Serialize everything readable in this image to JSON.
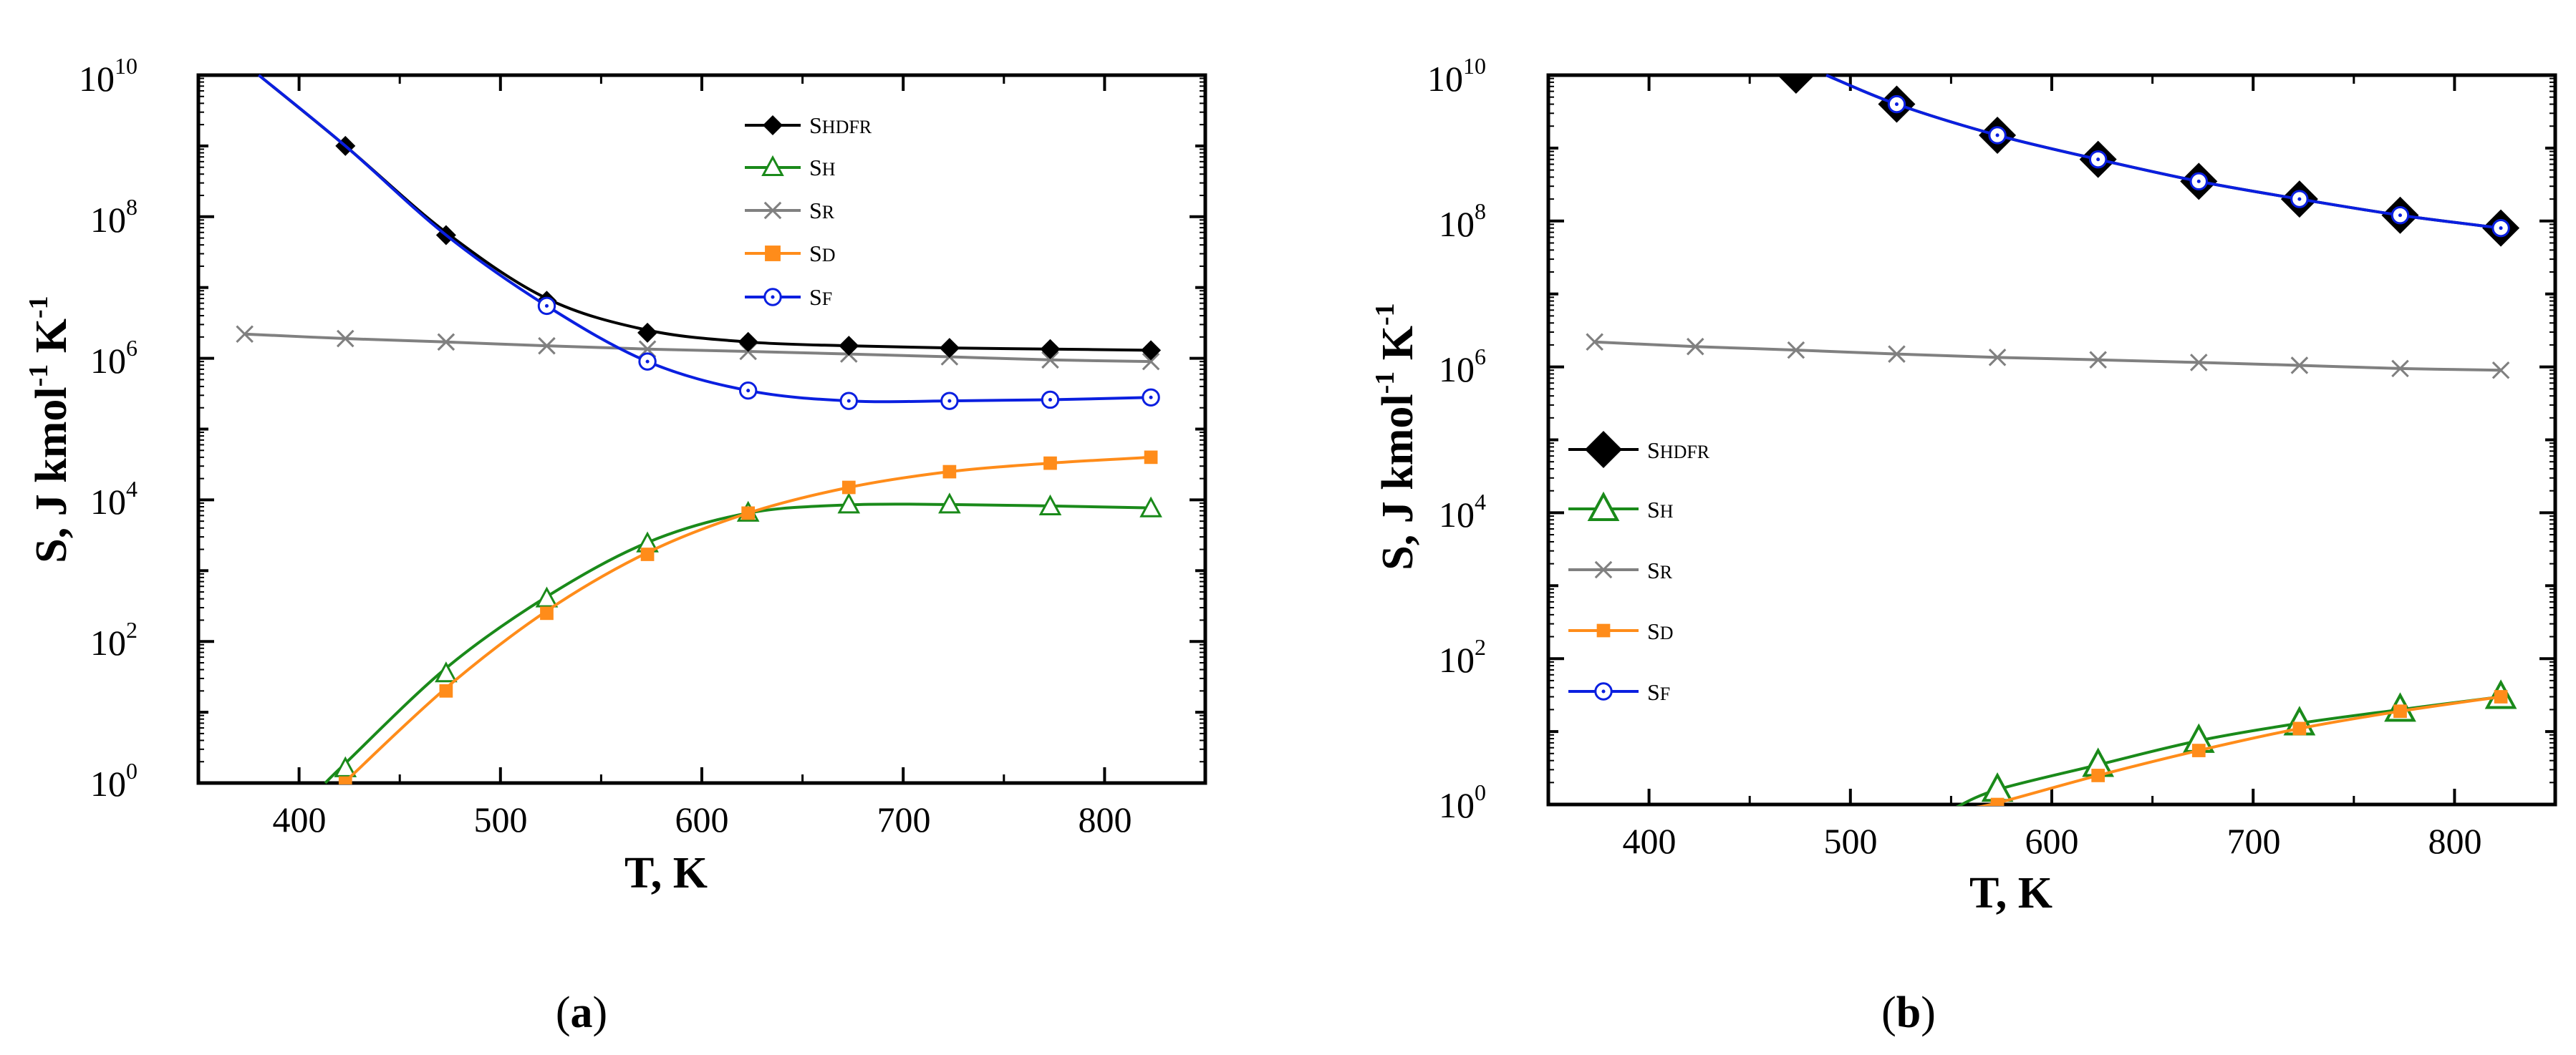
{
  "colors": {
    "shdfr": "#000000",
    "sh": "#1a8a1a",
    "sr": "#808080",
    "sd": "#ff8c1a",
    "sf": "#0a1fe0"
  },
  "chart_data": [
    {
      "type": "line",
      "caption_pre": "(",
      "caption_letter": "a",
      "caption_post": ")",
      "xlabel": "T, K",
      "ylabel_main": "S, J kmol",
      "ylabel_exp1": "-1",
      "ylabel_mid": " K",
      "ylabel_exp2": "-1",
      "yscale": "log",
      "xlim": [
        350,
        850
      ],
      "ylim": [
        1,
        10000000000
      ],
      "xticks": [
        400,
        500,
        600,
        700,
        800
      ],
      "yticks": [
        {
          "base": "10",
          "exp": "0"
        },
        {
          "base": "10",
          "exp": "2"
        },
        {
          "base": "10",
          "exp": "4"
        },
        {
          "base": "10",
          "exp": "6"
        },
        {
          "base": "10",
          "exp": "8"
        },
        {
          "base": "10",
          "exp": "10"
        }
      ],
      "legend_position": "top-right",
      "series": [
        {
          "key": "shdfr",
          "name": "S",
          "sub": "HDFR",
          "marker": "diamond",
          "points": [
            [
              423,
              1000000000
            ],
            [
              473,
              55000000
            ],
            [
              523,
              6500000
            ],
            [
              573,
              2300000
            ],
            [
              623,
              1700000
            ],
            [
              673,
              1500000
            ],
            [
              723,
              1400000
            ],
            [
              773,
              1350000
            ],
            [
              823,
              1300000
            ]
          ],
          "curve": [
            [
              380,
              10000000000
            ],
            [
              423,
              1000000000
            ],
            [
              473,
              60000000
            ],
            [
              523,
              7000000
            ],
            [
              573,
              2500000
            ],
            [
              623,
              1700000
            ],
            [
              673,
              1500000
            ],
            [
              723,
              1400000
            ],
            [
              773,
              1350000
            ],
            [
              823,
              1300000
            ]
          ]
        },
        {
          "key": "sh",
          "name": "S",
          "sub": "H",
          "marker": "triangle",
          "points": [
            [
              423,
              1.6
            ],
            [
              473,
              35
            ],
            [
              523,
              400
            ],
            [
              573,
              2400
            ],
            [
              623,
              6500
            ],
            [
              673,
              8500
            ],
            [
              723,
              8500
            ],
            [
              773,
              8000
            ],
            [
              823,
              7500
            ]
          ],
          "curve": [
            [
              413,
              1
            ],
            [
              423,
              1.9
            ],
            [
              473,
              42
            ],
            [
              523,
              430
            ],
            [
              573,
              2500
            ],
            [
              623,
              6500
            ],
            [
              673,
              8500
            ],
            [
              723,
              8600
            ],
            [
              773,
              8200
            ],
            [
              823,
              7700
            ]
          ]
        },
        {
          "key": "sr",
          "name": "S",
          "sub": "R",
          "marker": "x",
          "points": [
            [
              373,
              2200000
            ],
            [
              423,
              1900000
            ],
            [
              473,
              1700000
            ],
            [
              523,
              1500000
            ],
            [
              573,
              1350000
            ],
            [
              623,
              1250000
            ],
            [
              673,
              1150000
            ],
            [
              723,
              1050000
            ],
            [
              773,
              950000
            ],
            [
              823,
              900000
            ]
          ],
          "curve": [
            [
              373,
              2200000
            ],
            [
              423,
              1900000
            ],
            [
              473,
              1700000
            ],
            [
              523,
              1500000
            ],
            [
              573,
              1350000
            ],
            [
              623,
              1250000
            ],
            [
              673,
              1150000
            ],
            [
              723,
              1050000
            ],
            [
              773,
              950000
            ],
            [
              823,
              900000
            ]
          ]
        },
        {
          "key": "sd",
          "name": "S",
          "sub": "D",
          "marker": "square",
          "points": [
            [
              423,
              1
            ],
            [
              473,
              20
            ],
            [
              523,
              250
            ],
            [
              573,
              1700
            ],
            [
              623,
              6500
            ],
            [
              673,
              15000
            ],
            [
              723,
              25000
            ],
            [
              773,
              33000
            ],
            [
              823,
              40000
            ]
          ],
          "curve": [
            [
              420,
              0.9
            ],
            [
              423,
              1.05
            ],
            [
              473,
              22
            ],
            [
              523,
              270
            ],
            [
              573,
              1800
            ],
            [
              623,
              6500
            ],
            [
              673,
              15000
            ],
            [
              723,
              25000
            ],
            [
              773,
              33000
            ],
            [
              823,
              40000
            ]
          ]
        },
        {
          "key": "sf",
          "name": "S",
          "sub": "F",
          "marker": "circle",
          "points": [
            [
              523,
              5500000
            ],
            [
              573,
              900000
            ],
            [
              623,
              350000
            ],
            [
              673,
              250000
            ],
            [
              723,
              250000
            ],
            [
              773,
              260000
            ],
            [
              823,
              280000
            ]
          ],
          "curve": [
            [
              380,
              10000000000
            ],
            [
              423,
              1000000000
            ],
            [
              473,
              55000000
            ],
            [
              523,
              5500000
            ],
            [
              573,
              900000
            ],
            [
              623,
              350000
            ],
            [
              673,
              250000
            ],
            [
              723,
              250000
            ],
            [
              773,
              260000
            ],
            [
              823,
              280000
            ]
          ]
        }
      ]
    },
    {
      "type": "line",
      "caption_pre": "(",
      "caption_letter": "b",
      "caption_post": ")",
      "xlabel": "T, K",
      "ylabel_main": "S, J kmol",
      "ylabel_exp1": "-1",
      "ylabel_mid": " K",
      "ylabel_exp2": "-1",
      "yscale": "log",
      "xlim": [
        350,
        850
      ],
      "ylim": [
        1,
        10000000000
      ],
      "xticks": [
        400,
        500,
        600,
        700,
        800
      ],
      "yticks": [
        {
          "base": "10",
          "exp": "0"
        },
        {
          "base": "10",
          "exp": "2"
        },
        {
          "base": "10",
          "exp": "4"
        },
        {
          "base": "10",
          "exp": "6"
        },
        {
          "base": "10",
          "exp": "8"
        },
        {
          "base": "10",
          "exp": "10"
        }
      ],
      "legend_position": "left",
      "series": [
        {
          "key": "shdfr",
          "name": "S",
          "sub": "HDFR",
          "marker": "diamond",
          "points": [
            [
              473,
              10000000000
            ],
            [
              523,
              4000000000
            ],
            [
              573,
              1500000000
            ],
            [
              623,
              700000000
            ],
            [
              673,
              350000000
            ],
            [
              723,
              200000000
            ],
            [
              773,
              120000000
            ],
            [
              823,
              80000000
            ]
          ],
          "curve": [
            [
              488,
              10000000000
            ],
            [
              523,
              4000000000
            ],
            [
              573,
              1500000000
            ],
            [
              623,
              700000000
            ],
            [
              673,
              350000000
            ],
            [
              723,
              200000000
            ],
            [
              773,
              120000000
            ],
            [
              823,
              80000000
            ]
          ]
        },
        {
          "key": "sh",
          "name": "S",
          "sub": "H",
          "marker": "triangle",
          "points": [
            [
              573,
              1.6
            ],
            [
              623,
              3.5
            ],
            [
              673,
              7.5
            ],
            [
              723,
              13
            ],
            [
              773,
              20
            ],
            [
              823,
              30
            ]
          ],
          "curve": [
            [
              552,
              0.9
            ],
            [
              573,
              1.6
            ],
            [
              623,
              3.5
            ],
            [
              673,
              7.5
            ],
            [
              723,
              13
            ],
            [
              773,
              20
            ],
            [
              823,
              30
            ]
          ]
        },
        {
          "key": "sr",
          "name": "S",
          "sub": "R",
          "marker": "x",
          "points": [
            [
              373,
              2200000
            ],
            [
              423,
              1900000
            ],
            [
              473,
              1700000
            ],
            [
              523,
              1500000
            ],
            [
              573,
              1350000
            ],
            [
              623,
              1250000
            ],
            [
              673,
              1150000
            ],
            [
              723,
              1050000
            ],
            [
              773,
              950000
            ],
            [
              823,
              900000
            ]
          ],
          "curve": [
            [
              373,
              2200000
            ],
            [
              423,
              1900000
            ],
            [
              473,
              1700000
            ],
            [
              523,
              1500000
            ],
            [
              573,
              1350000
            ],
            [
              623,
              1250000
            ],
            [
              673,
              1150000
            ],
            [
              723,
              1050000
            ],
            [
              773,
              950000
            ],
            [
              823,
              900000
            ]
          ]
        },
        {
          "key": "sd",
          "name": "S",
          "sub": "D",
          "marker": "square",
          "points": [
            [
              573,
              1
            ],
            [
              623,
              2.5
            ],
            [
              673,
              5.5
            ],
            [
              723,
              11
            ],
            [
              773,
              19
            ],
            [
              823,
              30
            ]
          ],
          "curve": [
            [
              560,
              0.9
            ],
            [
              573,
              1.05
            ],
            [
              623,
              2.5
            ],
            [
              673,
              5.5
            ],
            [
              723,
              11
            ],
            [
              773,
              19
            ],
            [
              823,
              30
            ]
          ]
        },
        {
          "key": "sf",
          "name": "S",
          "sub": "F",
          "marker": "circle",
          "points": [
            [
              523,
              4000000000
            ],
            [
              573,
              1500000000
            ],
            [
              623,
              700000000
            ],
            [
              673,
              350000000
            ],
            [
              723,
              200000000
            ],
            [
              773,
              120000000
            ],
            [
              823,
              80000000
            ]
          ],
          "curve": [
            [
              488,
              10000000000
            ],
            [
              523,
              4000000000
            ],
            [
              573,
              1500000000
            ],
            [
              623,
              700000000
            ],
            [
              673,
              350000000
            ],
            [
              723,
              200000000
            ],
            [
              773,
              120000000
            ],
            [
              823,
              80000000
            ]
          ]
        }
      ]
    }
  ]
}
